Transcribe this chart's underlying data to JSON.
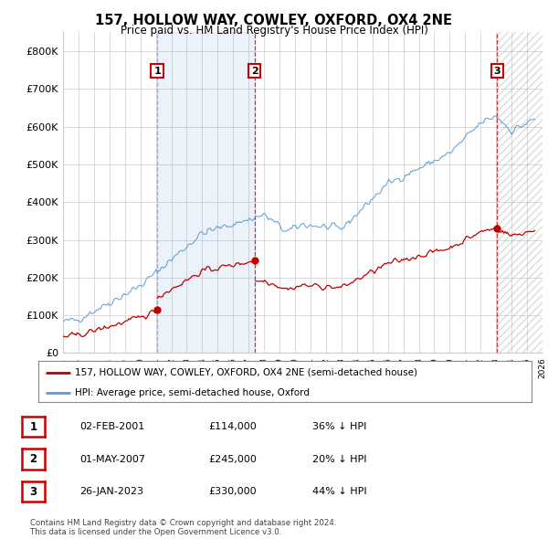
{
  "title": "157, HOLLOW WAY, COWLEY, OXFORD, OX4 2NE",
  "subtitle": "Price paid vs. HM Land Registry's House Price Index (HPI)",
  "ylim": [
    0,
    850000
  ],
  "yticks": [
    0,
    100000,
    200000,
    300000,
    400000,
    500000,
    600000,
    700000,
    800000
  ],
  "ytick_labels": [
    "£0",
    "£100K",
    "£200K",
    "£300K",
    "£400K",
    "£500K",
    "£600K",
    "£700K",
    "£800K"
  ],
  "hpi_color": "#5b9bd5",
  "price_color": "#c00000",
  "vline1_color": "#9999bb",
  "vline23_color": "#cc0000",
  "legend_line1": "157, HOLLOW WAY, COWLEY, OXFORD, OX4 2NE (semi-detached house)",
  "legend_line2": "HPI: Average price, semi-detached house, Oxford",
  "sale1_label": "1",
  "sale1_date": "02-FEB-2001",
  "sale1_price": "£114,000",
  "sale1_hpi": "36% ↓ HPI",
  "sale2_label": "2",
  "sale2_date": "01-MAY-2007",
  "sale2_price": "£245,000",
  "sale2_hpi": "20% ↓ HPI",
  "sale3_label": "3",
  "sale3_date": "26-JAN-2023",
  "sale3_price": "£330,000",
  "sale3_hpi": "44% ↓ HPI",
  "footer": "Contains HM Land Registry data © Crown copyright and database right 2024.\nThis data is licensed under the Open Government Licence v3.0.",
  "sale1_year": 2001.09,
  "sale1_value": 114000,
  "sale2_year": 2007.38,
  "sale2_value": 245000,
  "sale3_year": 2023.07,
  "sale3_value": 330000,
  "background_color": "#ffffff",
  "grid_color": "#cccccc",
  "box_edge_color": "#cc0000"
}
